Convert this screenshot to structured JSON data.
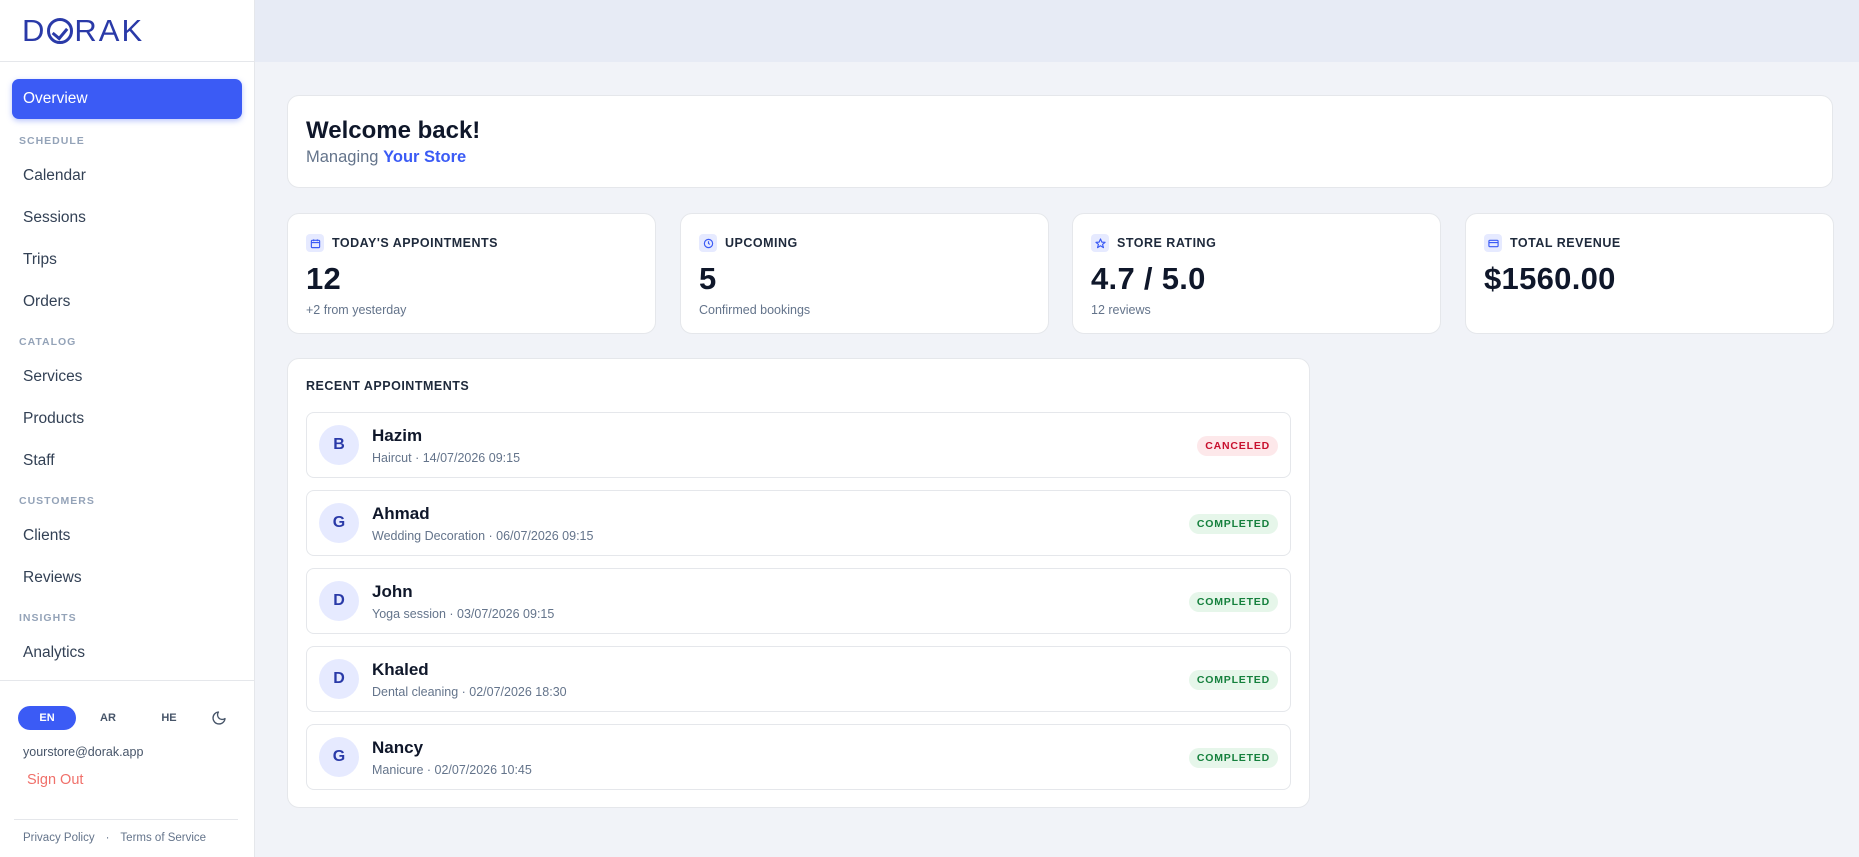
{
  "brand": {
    "logo_pre": "D",
    "logo_post": "RAK",
    "accent": "#3b5bf5"
  },
  "sidebar": {
    "overview": "Overview",
    "sections": [
      {
        "label": "SCHEDULE",
        "items": [
          "Calendar",
          "Sessions",
          "Trips",
          "Orders"
        ]
      },
      {
        "label": "CATALOG",
        "items": [
          "Services",
          "Products",
          "Staff"
        ]
      },
      {
        "label": "CUSTOMERS",
        "items": [
          "Clients",
          "Reviews"
        ]
      },
      {
        "label": "INSIGHTS",
        "items": [
          "Analytics"
        ]
      }
    ],
    "languages": [
      "EN",
      "AR",
      "HE"
    ],
    "active_language": "EN",
    "theme_toggle_icon": "moon-icon",
    "email": "yourstore@dorak.app",
    "sign_out": "Sign Out",
    "footer": {
      "privacy": "Privacy Policy",
      "separator": "·",
      "terms": "Terms of Service"
    }
  },
  "welcome": {
    "title": "Welcome back!",
    "managing": "Managing",
    "store": "Your Store"
  },
  "stats": [
    {
      "label": "TODAY'S APPOINTMENTS",
      "icon": "calendar-icon",
      "value": "12",
      "note": "+2 from yesterday"
    },
    {
      "label": "UPCOMING",
      "icon": "clock-icon",
      "value": "5",
      "note": "Confirmed bookings"
    },
    {
      "label": "STORE RATING",
      "icon": "star-icon",
      "value": "4.7 / 5.0",
      "note": "12 reviews"
    },
    {
      "label": "TOTAL REVENUE",
      "icon": "credit-card-icon",
      "value": "$1560.00",
      "note": ""
    }
  ],
  "recent": {
    "title": "RECENT APPOINTMENTS",
    "items": [
      {
        "initial": "B",
        "name": "Hazim",
        "detail": "Haircut · 14/07/2026 09:15",
        "status": "CANCELED"
      },
      {
        "initial": "G",
        "name": "Ahmad",
        "detail": "Wedding Decoration · 06/07/2026 09:15",
        "status": "COMPLETED"
      },
      {
        "initial": "D",
        "name": "John",
        "detail": "Yoga session · 03/07/2026 09:15",
        "status": "COMPLETED"
      },
      {
        "initial": "D",
        "name": "Khaled",
        "detail": "Dental cleaning · 02/07/2026 18:30",
        "status": "COMPLETED"
      },
      {
        "initial": "G",
        "name": "Nancy",
        "detail": "Manicure · 02/07/2026 10:45",
        "status": "COMPLETED"
      }
    ]
  }
}
